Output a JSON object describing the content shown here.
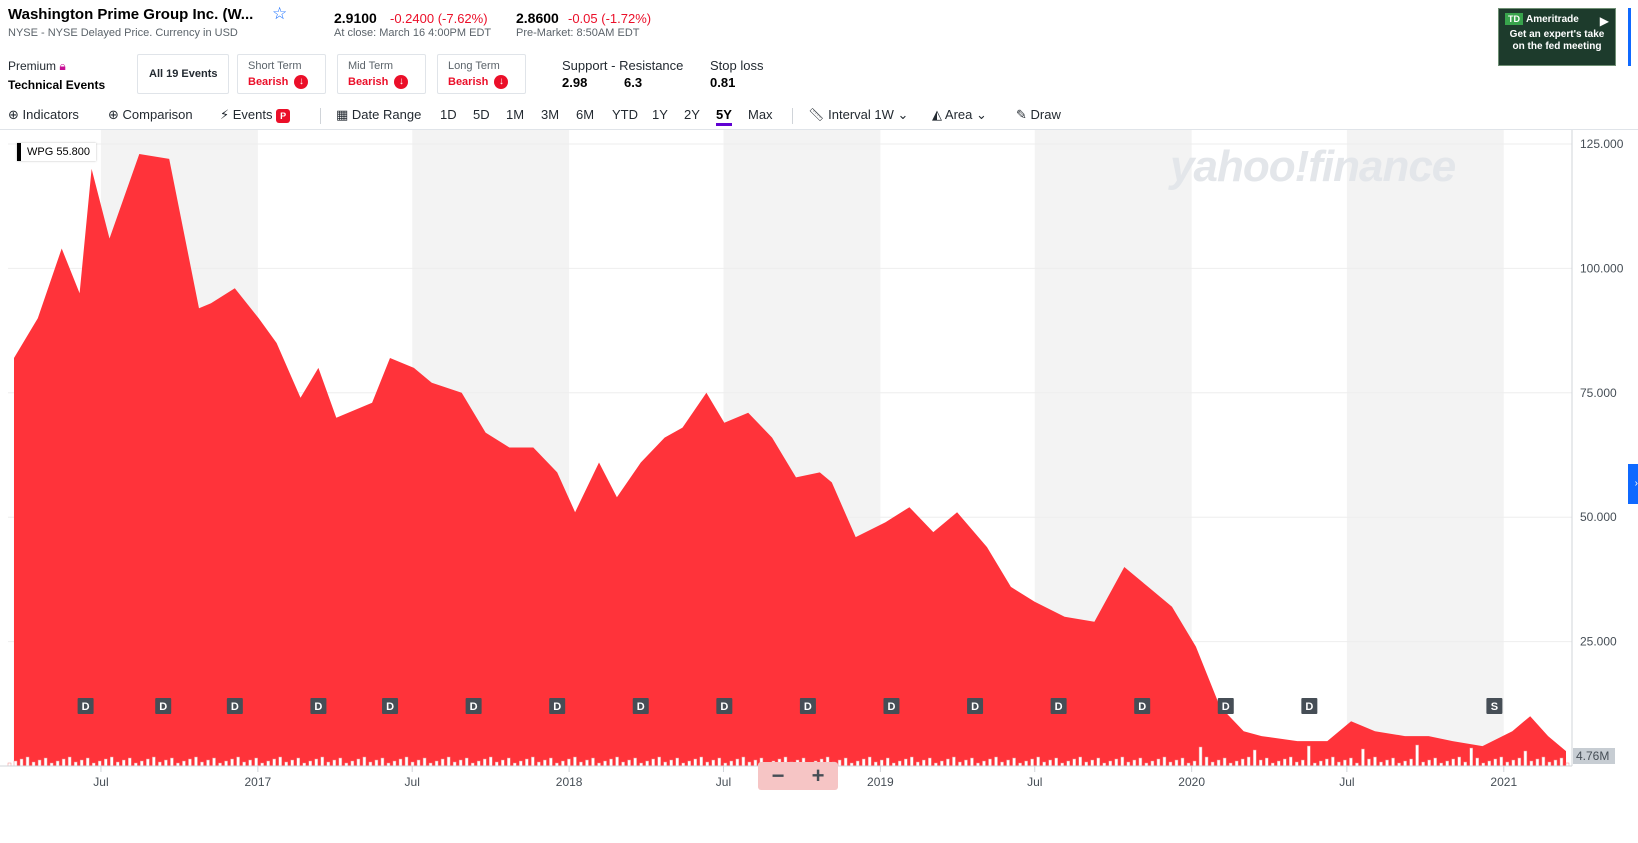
{
  "header": {
    "name": "Washington Prime Group Inc. (W...",
    "exchange": "NYSE - NYSE Delayed Price. Currency in USD",
    "close_price": "2.9100",
    "close_change": "-0.2400 (-7.62%)",
    "close_note": "At close: March 16 4:00PM EDT",
    "pre_price": "2.8600",
    "pre_change": "-0.05 (-1.72%)",
    "pre_note": "Pre-Market: 8:50AM EDT"
  },
  "ad": {
    "brand": "Ameritrade",
    "logo": "TD",
    "line1": "Get an expert's take",
    "line2": "on the fed meeting"
  },
  "technical": {
    "premium_label": "Premium",
    "technical_label": "Technical Events",
    "all_events": "All 19 Events",
    "short_term_label": "Short Term",
    "short_term_value": "Bearish",
    "mid_term_label": "Mid Term",
    "mid_term_value": "Bearish",
    "long_term_label": "Long Term",
    "long_term_value": "Bearish",
    "support_resistance_label": "Support - Resistance",
    "support_value": "2.98",
    "resistance_value": "6.3",
    "stop_loss_label": "Stop loss",
    "stop_loss_value": "0.81"
  },
  "toolbar": {
    "indicators": "Indicators",
    "comparison": "Comparison",
    "events": "Events",
    "events_badge": "P",
    "date_range": "Date Range",
    "ranges": [
      "1D",
      "5D",
      "1M",
      "3M",
      "6M",
      "YTD",
      "1Y",
      "2Y",
      "5Y",
      "Max"
    ],
    "active_range": "5Y",
    "interval_label": "Interval",
    "interval_value": "1W",
    "chart_type": "Area",
    "draw": "Draw"
  },
  "chart": {
    "legend_label": "WPG 55.800",
    "watermark": "yahoo!finance",
    "volume_label": "4.76M",
    "zoom_out": "−",
    "zoom_in": "+",
    "colors": {
      "area": "#ff333a",
      "band": "#f3f3f3",
      "grid": "#eeeeee",
      "marker": "#464e56"
    }
  },
  "chart_data": {
    "type": "area",
    "title": "",
    "series": [
      {
        "name": "WPG",
        "x": [
          "2016-03-21",
          "2016-04-18",
          "2016-05-16",
          "2016-06-06",
          "2016-06-20",
          "2016-07-11",
          "2016-08-15",
          "2016-09-19",
          "2016-10-24",
          "2016-11-07",
          "2016-12-05",
          "2017-01-02",
          "2017-01-23",
          "2017-02-20",
          "2017-03-13",
          "2017-04-03",
          "2017-05-15",
          "2017-06-05",
          "2017-07-03",
          "2017-07-24",
          "2017-08-28",
          "2017-09-25",
          "2017-10-23",
          "2017-11-20",
          "2017-12-18",
          "2018-01-08",
          "2018-02-05",
          "2018-02-26",
          "2018-03-26",
          "2018-04-23",
          "2018-05-14",
          "2018-06-11",
          "2018-07-02",
          "2018-07-30",
          "2018-08-27",
          "2018-09-24",
          "2018-10-22",
          "2018-11-05",
          "2018-12-03",
          "2019-01-07",
          "2019-02-04",
          "2019-03-04",
          "2019-04-01",
          "2019-05-06",
          "2019-06-03",
          "2019-07-01",
          "2019-08-05",
          "2019-09-09",
          "2019-10-14",
          "2019-11-11",
          "2019-12-09",
          "2020-01-06",
          "2020-02-03",
          "2020-03-02",
          "2020-03-23",
          "2020-05-04",
          "2020-06-08",
          "2020-07-06",
          "2020-08-03",
          "2020-09-07",
          "2020-10-05",
          "2020-11-02",
          "2020-12-07",
          "2021-01-11",
          "2021-02-01",
          "2021-02-22",
          "2021-03-15"
        ],
        "values": [
          82,
          90,
          104,
          95,
          120,
          106,
          123,
          122,
          92,
          93,
          96,
          90,
          85,
          74,
          80,
          70,
          73,
          82,
          80,
          77,
          75,
          67,
          64,
          64,
          59,
          51,
          61,
          54,
          61,
          66,
          68,
          75,
          69,
          71,
          66,
          58,
          59,
          57,
          46,
          49,
          52,
          47,
          51,
          44,
          36,
          33,
          30,
          29,
          40,
          36,
          32,
          24,
          12,
          7,
          6,
          5,
          5,
          9,
          7,
          6,
          6,
          5,
          4,
          7,
          10,
          6,
          3
        ]
      }
    ],
    "x_ticks": [
      "Jul",
      "2017",
      "Jul",
      "2018",
      "Jul",
      "2019",
      "Jul",
      "2020",
      "Jul",
      "2021"
    ],
    "y_ticks": [
      "125.000",
      "100.000",
      "75.000",
      "50.000",
      "25.000"
    ],
    "ylim": [
      0,
      125
    ],
    "event_markers": [
      {
        "label": "D",
        "date": "2016-06-13"
      },
      {
        "label": "D",
        "date": "2016-09-12"
      },
      {
        "label": "D",
        "date": "2016-12-05"
      },
      {
        "label": "D",
        "date": "2017-03-13"
      },
      {
        "label": "D",
        "date": "2017-06-05"
      },
      {
        "label": "D",
        "date": "2017-09-11"
      },
      {
        "label": "D",
        "date": "2017-12-18"
      },
      {
        "label": "D",
        "date": "2018-03-26"
      },
      {
        "label": "D",
        "date": "2018-07-02"
      },
      {
        "label": "D",
        "date": "2018-10-08"
      },
      {
        "label": "D",
        "date": "2019-01-14"
      },
      {
        "label": "D",
        "date": "2019-04-22"
      },
      {
        "label": "D",
        "date": "2019-07-29"
      },
      {
        "label": "D",
        "date": "2019-11-04"
      },
      {
        "label": "D",
        "date": "2020-02-10"
      },
      {
        "label": "D",
        "date": "2020-05-18"
      },
      {
        "label": "S",
        "date": "2020-12-21"
      }
    ],
    "grid": true,
    "legend": "top-left"
  }
}
